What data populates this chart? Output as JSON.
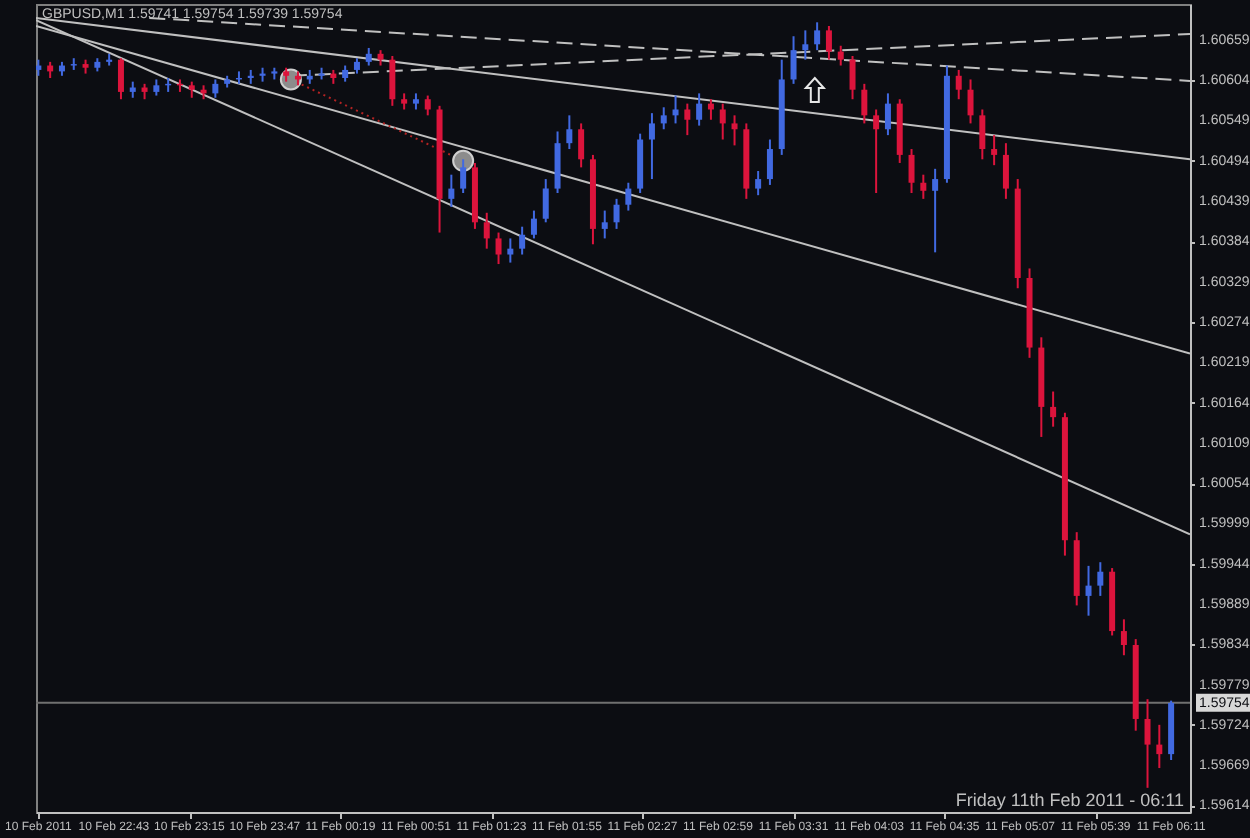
{
  "chart_data": {
    "type": "candlestick",
    "title": "GBPUSD,M1 1.59741 1.59754 1.59739 1.59754",
    "annotations": [
      "Friday 11th Feb 2011 - 06:11"
    ],
    "x": [
      "2011-02-10T22:11",
      "2011-02-10T22:16",
      "2011-02-10T22:21",
      "2011-02-10T22:26",
      "2011-02-10T22:31",
      "2011-02-10T22:36",
      "2011-02-10T22:41",
      "2011-02-10T22:46",
      "2011-02-10T22:51",
      "2011-02-10T22:56",
      "2011-02-10T23:01",
      "2011-02-10T23:06",
      "2011-02-10T23:11",
      "2011-02-10T23:16",
      "2011-02-10T23:21",
      "2011-02-10T23:26",
      "2011-02-10T23:31",
      "2011-02-10T23:36",
      "2011-02-10T23:41",
      "2011-02-10T23:46",
      "2011-02-10T23:51",
      "2011-02-10T23:56",
      "2011-02-11T00:01",
      "2011-02-11T00:06",
      "2011-02-11T00:11",
      "2011-02-11T00:16",
      "2011-02-11T00:21",
      "2011-02-11T00:26",
      "2011-02-11T00:31",
      "2011-02-11T00:36",
      "2011-02-11T00:41",
      "2011-02-11T00:46",
      "2011-02-11T00:51",
      "2011-02-11T00:56",
      "2011-02-11T01:01",
      "2011-02-11T01:06",
      "2011-02-11T01:11",
      "2011-02-11T01:16",
      "2011-02-11T01:21",
      "2011-02-11T01:26",
      "2011-02-11T01:31",
      "2011-02-11T01:36",
      "2011-02-11T01:41",
      "2011-02-11T01:46",
      "2011-02-11T01:51",
      "2011-02-11T01:56",
      "2011-02-11T02:01",
      "2011-02-11T02:06",
      "2011-02-11T02:11",
      "2011-02-11T02:16",
      "2011-02-11T02:21",
      "2011-02-11T02:26",
      "2011-02-11T02:31",
      "2011-02-11T02:36",
      "2011-02-11T02:41",
      "2011-02-11T02:46",
      "2011-02-11T02:51",
      "2011-02-11T02:56",
      "2011-02-11T03:01",
      "2011-02-11T03:06",
      "2011-02-11T03:11",
      "2011-02-11T03:16",
      "2011-02-11T03:21",
      "2011-02-11T03:26",
      "2011-02-11T03:31",
      "2011-02-11T03:36",
      "2011-02-11T03:41",
      "2011-02-11T03:46",
      "2011-02-11T03:51",
      "2011-02-11T03:56",
      "2011-02-11T04:01",
      "2011-02-11T04:06",
      "2011-02-11T04:11",
      "2011-02-11T04:16",
      "2011-02-11T04:21",
      "2011-02-11T04:26",
      "2011-02-11T04:31",
      "2011-02-11T04:36",
      "2011-02-11T04:41",
      "2011-02-11T04:46",
      "2011-02-11T04:51",
      "2011-02-11T04:56",
      "2011-02-11T05:01",
      "2011-02-11T05:06",
      "2011-02-11T05:11",
      "2011-02-11T05:16",
      "2011-02-11T05:21",
      "2011-02-11T05:26",
      "2011-02-11T05:31",
      "2011-02-11T05:36",
      "2011-02-11T05:41",
      "2011-02-11T05:46",
      "2011-02-11T05:51",
      "2011-02-11T05:56",
      "2011-02-11T06:01",
      "2011-02-11T06:06",
      "2011-02-11T06:11"
    ],
    "ohlc": [
      [
        1.60618,
        1.60632,
        1.6061,
        1.60624
      ],
      [
        1.60624,
        1.60629,
        1.60607,
        1.60616
      ],
      [
        1.60616,
        1.60629,
        1.6061,
        1.60624
      ],
      [
        1.60624,
        1.60634,
        1.60618,
        1.60626
      ],
      [
        1.60626,
        1.60632,
        1.60613,
        1.60621
      ],
      [
        1.60621,
        1.60634,
        1.60616,
        1.60629
      ],
      [
        1.60629,
        1.6064,
        1.60624,
        1.60632
      ],
      [
        1.60632,
        1.60634,
        1.60578,
        1.60588
      ],
      [
        1.60588,
        1.60602,
        1.6058,
        1.60594
      ],
      [
        1.60594,
        1.60599,
        1.60578,
        1.60588
      ],
      [
        1.60588,
        1.60605,
        1.60583,
        1.60597
      ],
      [
        1.60597,
        1.60607,
        1.60588,
        1.60599
      ],
      [
        1.60599,
        1.60605,
        1.60588,
        1.60597
      ],
      [
        1.60597,
        1.60602,
        1.6058,
        1.60591
      ],
      [
        1.60591,
        1.60597,
        1.60578,
        1.60586
      ],
      [
        1.60586,
        1.60605,
        1.6058,
        1.60599
      ],
      [
        1.60599,
        1.6061,
        1.60594,
        1.60605
      ],
      [
        1.60605,
        1.60616,
        1.60599,
        1.60607
      ],
      [
        1.60607,
        1.60618,
        1.60599,
        1.6061
      ],
      [
        1.6061,
        1.60621,
        1.60602,
        1.60613
      ],
      [
        1.60613,
        1.60621,
        1.60605,
        1.60616
      ],
      [
        1.60616,
        1.60621,
        1.60602,
        1.6061
      ],
      [
        1.6061,
        1.60616,
        1.60597,
        1.60605
      ],
      [
        1.60605,
        1.60618,
        1.60599,
        1.6061
      ],
      [
        1.6061,
        1.60621,
        1.60605,
        1.60613
      ],
      [
        1.60613,
        1.60618,
        1.60599,
        1.60607
      ],
      [
        1.60607,
        1.60624,
        1.60602,
        1.60618
      ],
      [
        1.60618,
        1.60634,
        1.60613,
        1.60629
      ],
      [
        1.60629,
        1.60648,
        1.60624,
        1.6064
      ],
      [
        1.6064,
        1.60645,
        1.60624,
        1.60632
      ],
      [
        1.60632,
        1.60637,
        1.60569,
        1.60578
      ],
      [
        1.60578,
        1.60586,
        1.60564,
        1.60572
      ],
      [
        1.60572,
        1.60586,
        1.60564,
        1.60578
      ],
      [
        1.60578,
        1.60583,
        1.60556,
        1.60564
      ],
      [
        1.60564,
        1.60569,
        1.60396,
        1.60442
      ],
      [
        1.60442,
        1.60475,
        1.60431,
        1.60456
      ],
      [
        1.60456,
        1.60496,
        1.6045,
        1.60485
      ],
      [
        1.60485,
        1.60491,
        1.60401,
        1.6041
      ],
      [
        1.6041,
        1.60423,
        1.60374,
        1.60388
      ],
      [
        1.60388,
        1.60396,
        1.60353,
        1.60366
      ],
      [
        1.60366,
        1.60388,
        1.60355,
        1.60374
      ],
      [
        1.60374,
        1.60404,
        1.60366,
        1.60393
      ],
      [
        1.60393,
        1.60426,
        1.60388,
        1.60415
      ],
      [
        1.60415,
        1.60469,
        1.6041,
        1.60456
      ],
      [
        1.60456,
        1.60534,
        1.6045,
        1.60518
      ],
      [
        1.60518,
        1.60556,
        1.6051,
        1.60537
      ],
      [
        1.60537,
        1.60545,
        1.60485,
        1.60496
      ],
      [
        1.60496,
        1.60502,
        1.6038,
        1.60401
      ],
      [
        1.60401,
        1.60426,
        1.60388,
        1.6041
      ],
      [
        1.6041,
        1.60442,
        1.60401,
        1.60434
      ],
      [
        1.60434,
        1.60464,
        1.60426,
        1.60456
      ],
      [
        1.60456,
        1.60531,
        1.6045,
        1.60523
      ],
      [
        1.60523,
        1.60559,
        1.60469,
        1.60545
      ],
      [
        1.60545,
        1.60567,
        1.60537,
        1.60556
      ],
      [
        1.60556,
        1.60583,
        1.60545,
        1.60564
      ],
      [
        1.60564,
        1.60572,
        1.60529,
        1.6055
      ],
      [
        1.6055,
        1.60586,
        1.60542,
        1.60572
      ],
      [
        1.60572,
        1.60578,
        1.6055,
        1.60564
      ],
      [
        1.60564,
        1.60572,
        1.60523,
        1.60545
      ],
      [
        1.60545,
        1.60556,
        1.60515,
        1.60537
      ],
      [
        1.60537,
        1.60545,
        1.60442,
        1.60456
      ],
      [
        1.60456,
        1.6048,
        1.60447,
        1.60469
      ],
      [
        1.60469,
        1.60523,
        1.60461,
        1.6051
      ],
      [
        1.6051,
        1.60632,
        1.60502,
        1.60605
      ],
      [
        1.60605,
        1.60664,
        1.60599,
        1.60645
      ],
      [
        1.60645,
        1.60672,
        1.60632,
        1.60653
      ],
      [
        1.60653,
        1.60683,
        1.60645,
        1.60672
      ],
      [
        1.60672,
        1.60678,
        1.60632,
        1.60643
      ],
      [
        1.60643,
        1.60651,
        1.60624,
        1.60632
      ],
      [
        1.60632,
        1.60637,
        1.60578,
        1.60591
      ],
      [
        1.60591,
        1.60599,
        1.60545,
        1.60556
      ],
      [
        1.60556,
        1.60564,
        1.6045,
        1.60537
      ],
      [
        1.60537,
        1.60586,
        1.60529,
        1.60572
      ],
      [
        1.60572,
        1.60578,
        1.60491,
        1.60502
      ],
      [
        1.60502,
        1.6051,
        1.6045,
        1.60464
      ],
      [
        1.60464,
        1.60475,
        1.60442,
        1.60453
      ],
      [
        1.60453,
        1.60483,
        1.60369,
        1.60469
      ],
      [
        1.60469,
        1.60624,
        1.60464,
        1.6061
      ],
      [
        1.6061,
        1.60618,
        1.60578,
        1.60591
      ],
      [
        1.60591,
        1.60605,
        1.60545,
        1.60556
      ],
      [
        1.60556,
        1.60564,
        1.60496,
        1.6051
      ],
      [
        1.6051,
        1.60529,
        1.60488,
        1.60502
      ],
      [
        1.60502,
        1.60518,
        1.60442,
        1.60456
      ],
      [
        1.60456,
        1.60469,
        1.6032,
        1.60334
      ],
      [
        1.60334,
        1.60347,
        1.60225,
        1.60239
      ],
      [
        1.60239,
        1.60253,
        1.60117,
        1.60158
      ],
      [
        1.60158,
        1.60179,
        1.60131,
        1.60144
      ],
      [
        1.60144,
        1.6015,
        1.59955,
        1.59976
      ],
      [
        1.59976,
        1.59987,
        1.59887,
        1.599
      ],
      [
        1.599,
        1.59941,
        1.59873,
        1.59914
      ],
      [
        1.59914,
        1.59946,
        1.599,
        1.59933
      ],
      [
        1.59933,
        1.59938,
        1.59846,
        1.59852
      ],
      [
        1.59852,
        1.59868,
        1.59819,
        1.59833
      ],
      [
        1.59833,
        1.59841,
        1.59716,
        1.59732
      ],
      [
        1.59732,
        1.59759,
        1.59638,
        1.59697
      ],
      [
        1.59697,
        1.59724,
        1.59665,
        1.59684
      ],
      [
        1.59684,
        1.59757,
        1.59676,
        1.59754
      ]
    ],
    "colors": [
      "#4169e1",
      "#dc143c",
      "#4169e1",
      "#4169e1",
      "#dc143c",
      "#4169e1",
      "#4169e1",
      "#dc143c",
      "#4169e1",
      "#dc143c",
      "#4169e1",
      "#4169e1",
      "#dc143c",
      "#dc143c",
      "#dc143c",
      "#4169e1",
      "#4169e1",
      "#4169e1",
      "#4169e1",
      "#4169e1",
      "#4169e1",
      "#dc143c",
      "#dc143c",
      "#4169e1",
      "#4169e1",
      "#dc143c",
      "#4169e1",
      "#4169e1",
      "#4169e1",
      "#dc143c",
      "#dc143c",
      "#dc143c",
      "#4169e1",
      "#dc143c",
      "#dc143c",
      "#4169e1",
      "#4169e1",
      "#dc143c",
      "#dc143c",
      "#dc143c",
      "#4169e1",
      "#4169e1",
      "#4169e1",
      "#4169e1",
      "#4169e1",
      "#4169e1",
      "#dc143c",
      "#dc143c",
      "#4169e1",
      "#4169e1",
      "#4169e1",
      "#4169e1",
      "#4169e1",
      "#4169e1",
      "#4169e1",
      "#dc143c",
      "#4169e1",
      "#dc143c",
      "#dc143c",
      "#dc143c",
      "#dc143c",
      "#4169e1",
      "#4169e1",
      "#4169e1",
      "#4169e1",
      "#4169e1",
      "#4169e1",
      "#dc143c",
      "#dc143c",
      "#dc143c",
      "#dc143c",
      "#dc143c",
      "#4169e1",
      "#dc143c",
      "#dc143c",
      "#dc143c",
      "#4169e1",
      "#4169e1",
      "#dc143c",
      "#dc143c",
      "#dc143c",
      "#dc143c",
      "#dc143c",
      "#dc143c",
      "#dc143c",
      "#dc143c",
      "#dc143c",
      "#dc143c",
      "#dc143c",
      "#4169e1",
      "#4169e1",
      "#dc143c",
      "#dc143c",
      "#dc143c",
      "#dc143c",
      "#dc143c",
      "#4169e1"
    ],
    "series": [
      {
        "type": "line",
        "x": [
          "2011-02-10T22:10",
          "2011-02-11T06:19"
        ],
        "values": [
          1.60689,
          1.60496
        ],
        "color": "#c0c0c0"
      },
      {
        "type": "line",
        "x": [
          "2011-02-10T22:10",
          "2011-02-11T06:19"
        ],
        "values": [
          1.60678,
          1.60231
        ],
        "color": "#c0c0c0"
      },
      {
        "type": "line",
        "x": [
          "2011-02-10T22:10",
          "2011-02-11T06:19"
        ],
        "values": [
          1.60686,
          1.59984
        ],
        "color": "#c0c0c0"
      },
      {
        "type": "line",
        "x": [
          "2011-02-10T22:58",
          "2011-02-11T06:19"
        ],
        "values": [
          1.60689,
          1.60603
        ],
        "color": "#c0c0c0",
        "line_style": "dashed"
      },
      {
        "type": "line",
        "x": [
          "2011-02-10T23:58",
          "2011-02-11T06:19"
        ],
        "values": [
          1.6061,
          1.60667
        ],
        "color": "#c0c0c0",
        "line_style": "dashed"
      },
      {
        "type": "line",
        "x": [
          "2011-02-10T23:58",
          "2011-02-11T01:11"
        ],
        "values": [
          1.60605,
          1.60494
        ],
        "color": "#b22222",
        "line_style": "dotted",
        "marker": "circle"
      }
    ],
    "ref_lines": [
      {
        "axis": "y",
        "value": 1.59754,
        "label": "1.59754",
        "color": "#707070"
      }
    ],
    "xlim": [
      "2011-02-10T22:10",
      "2011-02-11T06:19"
    ],
    "xticks": [
      {
        "value": "2011-02-10T22:11",
        "label": "10 Feb 2011"
      },
      {
        "value": "2011-02-10T22:43",
        "label": "10 Feb 22:43"
      },
      {
        "value": "2011-02-10T23:15",
        "label": "10 Feb 23:15"
      },
      {
        "value": "2011-02-10T23:47",
        "label": "10 Feb 23:47"
      },
      {
        "value": "2011-02-11T00:19",
        "label": "11 Feb 00:19"
      },
      {
        "value": "2011-02-11T00:51",
        "label": "11 Feb 00:51"
      },
      {
        "value": "2011-02-11T01:23",
        "label": "11 Feb 01:23"
      },
      {
        "value": "2011-02-11T01:55",
        "label": "11 Feb 01:55"
      },
      {
        "value": "2011-02-11T02:27",
        "label": "11 Feb 02:27"
      },
      {
        "value": "2011-02-11T02:59",
        "label": "11 Feb 02:59"
      },
      {
        "value": "2011-02-11T03:31",
        "label": "11 Feb 03:31"
      },
      {
        "value": "2011-02-11T04:03",
        "label": "11 Feb 04:03"
      },
      {
        "value": "2011-02-11T04:35",
        "label": "11 Feb 04:35"
      },
      {
        "value": "2011-02-11T05:07",
        "label": "11 Feb 05:07"
      },
      {
        "value": "2011-02-11T05:39",
        "label": "11 Feb 05:39"
      },
      {
        "value": "2011-02-11T06:11",
        "label": "11 Feb 06:11"
      }
    ],
    "ylim": [
      1.59605,
      1.60708
    ],
    "yticks": [
      1.60659,
      1.60604,
      1.60549,
      1.60494,
      1.60439,
      1.60384,
      1.60329,
      1.60274,
      1.60219,
      1.60164,
      1.60109,
      1.60054,
      1.59999,
      1.59944,
      1.59889,
      1.59834,
      1.59779,
      1.59724,
      1.59669,
      1.59614
    ]
  }
}
